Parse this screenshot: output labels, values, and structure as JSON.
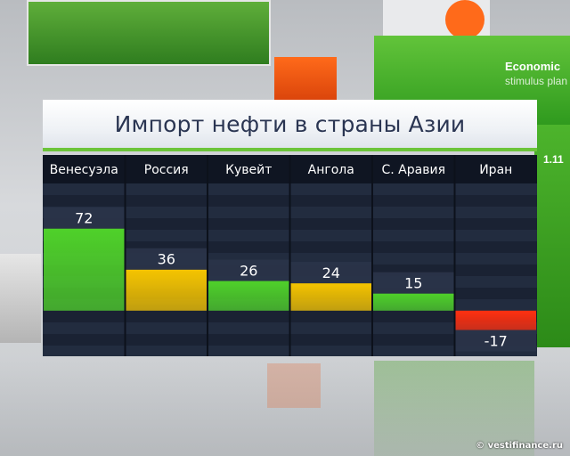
{
  "chart_data": {
    "type": "bar",
    "title": "Импорт нефти в страны Азии",
    "categories": [
      "Венесуэла",
      "Россия",
      "Кувейт",
      "Ангола",
      "С. Аравия",
      "Иран"
    ],
    "values": [
      72,
      36,
      26,
      24,
      15,
      -17
    ],
    "value_labels": [
      "72",
      "36",
      "26",
      "24",
      "15",
      "-17"
    ],
    "bar_colors": [
      "green",
      "yellow",
      "green",
      "yellow",
      "green",
      "red"
    ],
    "ylim": [
      -40,
      110
    ],
    "grid": true
  },
  "colors": {
    "green": "#4fd12a",
    "yellow": "#f5c400",
    "red": "#ff3010",
    "header_bg": "#0f1522",
    "chart_bg": "#1a2233",
    "stripe": "#222c3f",
    "title_text": "#2a3552"
  },
  "background": {
    "panel_title": "Economic",
    "panel_subtitle": "stimulus plan",
    "panel_number": "1.11"
  },
  "watermark": "© vestifinance.ru"
}
